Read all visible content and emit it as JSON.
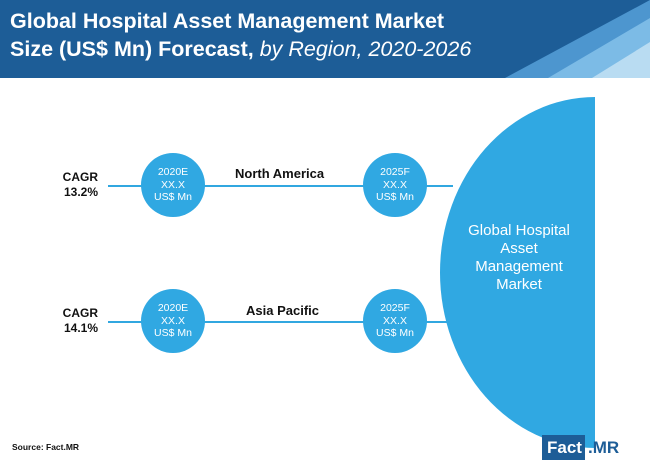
{
  "header": {
    "title_line1": "Global Hospital Asset Management Market",
    "title_line2_bold": "Size (US$ Mn) Forecast,",
    "title_line2_italic": " by Region, 2020-2026",
    "colors": {
      "band": "#1d5d97",
      "accent": "#30a8e2"
    }
  },
  "rows": [
    {
      "cagr_label": "CAGR",
      "cagr_value": "13.2%",
      "region": "North America",
      "start": {
        "line1": "2020E",
        "line2": "XX.X",
        "line3": "US$ Mn"
      },
      "end": {
        "line1": "2025F",
        "line2": "XX.X",
        "line3": "US$ Mn"
      }
    },
    {
      "cagr_label": "CAGR",
      "cagr_value": "14.1%",
      "region": "Asia Pacific",
      "start": {
        "line1": "2020E",
        "line2": "XX.X",
        "line3": "US$ Mn"
      },
      "end": {
        "line1": "2025F",
        "line2": "XX.X",
        "line3": "US$ Mn"
      }
    }
  ],
  "market": {
    "line1": "Global Hospital",
    "line2": "Asset",
    "line3": "Management",
    "line4": "Market"
  },
  "footer": {
    "source": "Source: Fact.MR",
    "logo_a": "Fact",
    "logo_b": ".MR"
  }
}
